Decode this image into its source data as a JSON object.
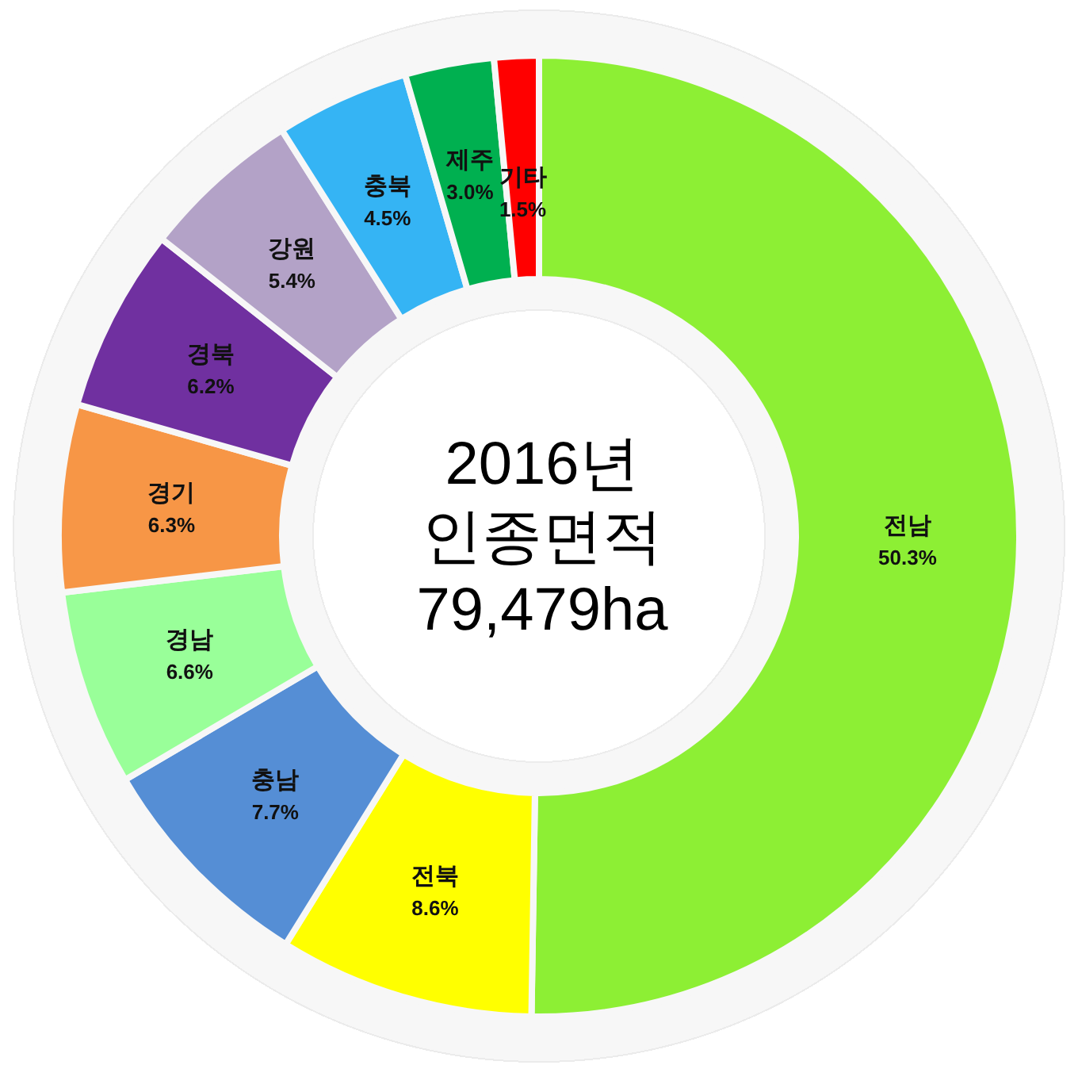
{
  "chart_data": {
    "type": "donut",
    "title": "2016년\n인종면적\n79,479ha",
    "categories": [
      "전남",
      "전북",
      "충남",
      "경남",
      "경기",
      "경북",
      "강원",
      "충북",
      "제주",
      "기타"
    ],
    "values": [
      50.3,
      8.6,
      7.7,
      6.6,
      6.3,
      6.2,
      5.4,
      4.5,
      3.0,
      1.5
    ],
    "colors": [
      "#8def34",
      "#ffff00",
      "#558ed5",
      "#99ff99",
      "#f79646",
      "#7030a0",
      "#b3a2c7",
      "#35b4f4",
      "#00b050",
      "#ff0000"
    ],
    "value_labels": [
      "50.3%",
      "8.6%",
      "7.7%",
      "6.6%",
      "6.3%",
      "6.2%",
      "5.4%",
      "4.5%",
      "3.0%",
      "1.5%"
    ]
  }
}
